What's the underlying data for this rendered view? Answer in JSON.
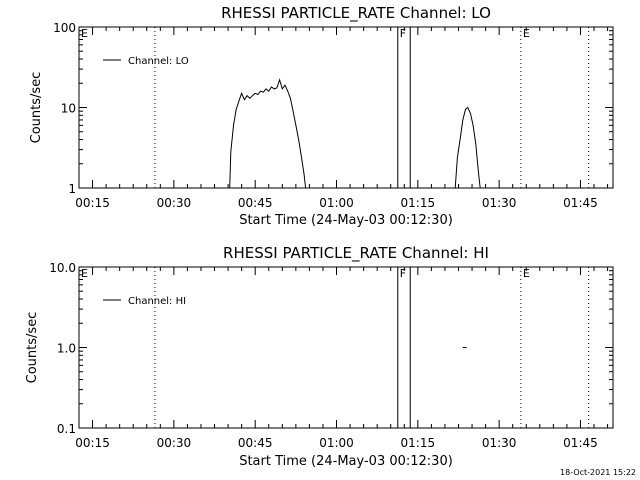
{
  "footer": {
    "timestamp": "18-Oct-2021 15:22"
  },
  "chart_data": [
    {
      "type": "line",
      "title": "RHESSI PARTICLE_RATE Channel: LO",
      "xlabel": "Start Time (24-May-03 00:12:30)",
      "ylabel": "Counts/sec",
      "yscale": "log",
      "ylim": [
        1,
        100
      ],
      "xlim_minutes": [
        12.5,
        111
      ],
      "x_ticks": [
        "00:15",
        "00:30",
        "00:45",
        "01:00",
        "01:15",
        "01:30",
        "01:45"
      ],
      "x_tick_minutes": [
        15,
        30,
        45,
        60,
        75,
        90,
        105
      ],
      "y_ticks": [
        "1",
        "10",
        "100"
      ],
      "y_tick_values": [
        1,
        10,
        100
      ],
      "legend": {
        "label": "Channel: LO",
        "position": "top-left"
      },
      "markers": [
        {
          "label": "E",
          "minute": 12.5,
          "style": "none"
        },
        {
          "label": "",
          "minute": 26.5,
          "style": "dotted"
        },
        {
          "label": "F",
          "minute": 71.3,
          "style": "solid"
        },
        {
          "label": "",
          "minute": 73.6,
          "style": "solid"
        },
        {
          "label": "E",
          "minute": 94.0,
          "style": "dotted"
        },
        {
          "label": "",
          "minute": 106.5,
          "style": "dotted"
        }
      ],
      "series": [
        {
          "name": "Channel: LO",
          "segments": [
            {
              "x": [
                40.3,
                40.5,
                41.0,
                41.5,
                42.0,
                42.5,
                43.0,
                43.5,
                44.0,
                44.5,
                45.0,
                45.5,
                46.0,
                46.5,
                47.0,
                47.5,
                48.0,
                48.5,
                49.0,
                49.5,
                50.0,
                50.5,
                51.0,
                51.5,
                52.0,
                52.5,
                53.0,
                53.5,
                54.0,
                54.3
              ],
              "y": [
                1,
                2.8,
                6,
                9.5,
                12,
                15,
                12.5,
                14,
                13,
                14,
                15,
                14.5,
                16,
                15.5,
                17,
                16,
                18,
                17,
                17.5,
                22,
                17,
                19,
                16,
                13,
                9,
                6,
                4,
                2.5,
                1.5,
                1
              ]
            },
            {
              "x": [
                81.9,
                82.3,
                82.8,
                83.3,
                83.8,
                84.2,
                84.7,
                85.2,
                85.7,
                86.2,
                86.5
              ],
              "y": [
                1,
                2.4,
                4,
                7,
                9.5,
                10,
                8.5,
                6,
                3.5,
                1.5,
                1
              ]
            }
          ]
        }
      ]
    },
    {
      "type": "line",
      "title": "RHESSI PARTICLE_RATE Channel: HI",
      "xlabel": "Start Time (24-May-03 00:12:30)",
      "ylabel": "Counts/sec",
      "yscale": "log",
      "ylim": [
        0.1,
        10
      ],
      "xlim_minutes": [
        12.5,
        111
      ],
      "x_ticks": [
        "00:15",
        "00:30",
        "00:45",
        "01:00",
        "01:15",
        "01:30",
        "01:45"
      ],
      "x_tick_minutes": [
        15,
        30,
        45,
        60,
        75,
        90,
        105
      ],
      "y_ticks": [
        "0.1",
        "1.0",
        "10.0"
      ],
      "y_tick_values": [
        0.1,
        1,
        10
      ],
      "legend": {
        "label": "Channel: HI",
        "position": "top-left"
      },
      "markers": [
        {
          "label": "E",
          "minute": 12.5,
          "style": "none"
        },
        {
          "label": "",
          "minute": 26.5,
          "style": "dotted"
        },
        {
          "label": "F",
          "minute": 71.3,
          "style": "solid"
        },
        {
          "label": "",
          "minute": 73.6,
          "style": "solid"
        },
        {
          "label": "E",
          "minute": 94.0,
          "style": "dotted"
        },
        {
          "label": "",
          "minute": 106.5,
          "style": "dotted"
        }
      ],
      "series": [
        {
          "name": "Channel: HI",
          "segments": [
            {
              "x": [
                83.3,
                84.0
              ],
              "y": [
                1.0,
                1.0
              ]
            }
          ]
        }
      ]
    }
  ]
}
